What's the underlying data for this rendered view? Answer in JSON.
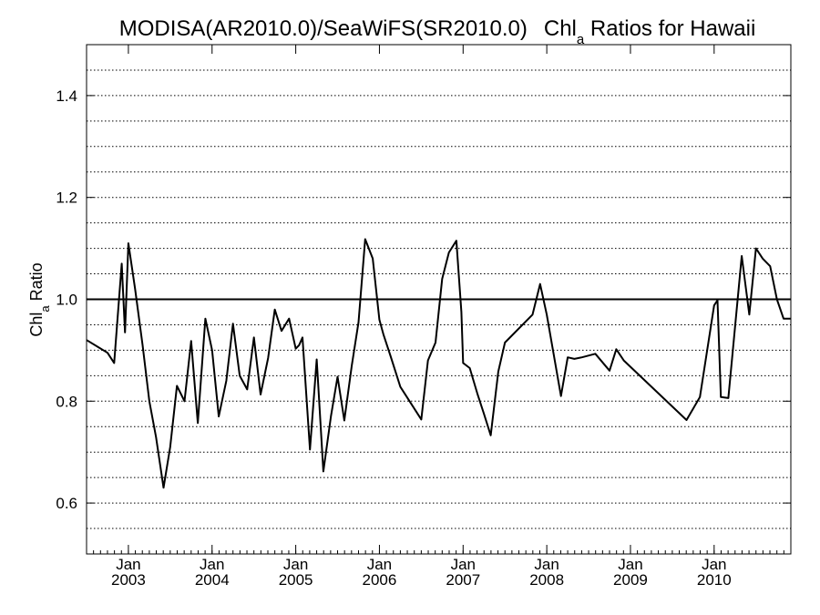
{
  "chart_data": {
    "type": "line",
    "title": "MODISA(AR2010.0)/SeaWiFS(SR2010.0)",
    "title_suffix_main": "Chl",
    "title_suffix_sub": "a",
    "title_suffix_rest": " Ratios for Hawaii",
    "ylabel_main": "Chl",
    "ylabel_sub": "a",
    "ylabel_rest": " Ratio",
    "ylim": [
      0.5,
      1.5
    ],
    "xlim": [
      2002.5,
      2010.9167
    ],
    "y_ticks": [
      {
        "value": 0.6,
        "label": "0.6"
      },
      {
        "value": 0.8,
        "label": "0.8"
      },
      {
        "value": 1.0,
        "label": "1.0"
      },
      {
        "value": 1.2,
        "label": "1.2"
      },
      {
        "value": 1.4,
        "label": "1.4"
      }
    ],
    "x_ticks": [
      {
        "value": 2003.0,
        "label_top": "Jan",
        "label_bottom": "2003"
      },
      {
        "value": 2004.0,
        "label_top": "Jan",
        "label_bottom": "2004"
      },
      {
        "value": 2005.0,
        "label_top": "Jan",
        "label_bottom": "2005"
      },
      {
        "value": 2006.0,
        "label_top": "Jan",
        "label_bottom": "2006"
      },
      {
        "value": 2007.0,
        "label_top": "Jan",
        "label_bottom": "2007"
      },
      {
        "value": 2008.0,
        "label_top": "Jan",
        "label_bottom": "2008"
      },
      {
        "value": 2009.0,
        "label_top": "Jan",
        "label_bottom": "2009"
      },
      {
        "value": 2010.0,
        "label_top": "Jan",
        "label_bottom": "2010"
      }
    ],
    "reference_line": 1.0,
    "grid": "dotted horizontal every 0.05",
    "line_color": "#000000",
    "series": [
      {
        "x": [
          2002.5,
          2002.75,
          2002.83,
          2002.92,
          2002.96,
          2003.0,
          2003.08,
          2003.17,
          2003.25,
          2003.33,
          2003.42,
          2003.5,
          2003.58,
          2003.67,
          2003.75,
          2003.83,
          2003.92,
          2004.0,
          2004.08,
          2004.17,
          2004.25,
          2004.33,
          2004.42,
          2004.5,
          2004.58,
          2004.67,
          2004.75,
          2004.83,
          2004.92,
          2005.0,
          2005.04,
          2005.08,
          2005.17,
          2005.25,
          2005.33,
          2005.42,
          2005.5,
          2005.58,
          2005.67,
          2005.75,
          2005.83,
          2005.92,
          2006.0,
          2006.05,
          2006.13,
          2006.25,
          2006.5,
          2006.58,
          2006.67,
          2006.75,
          2006.83,
          2006.92,
          2006.98,
          2007.0,
          2007.08,
          2007.17,
          2007.25,
          2007.33,
          2007.42,
          2007.5,
          2007.83,
          2007.92,
          2008.0,
          2008.17,
          2008.25,
          2008.33,
          2008.42,
          2008.58,
          2008.75,
          2008.83,
          2008.92,
          2009.67,
          2009.83,
          2010.0,
          2010.04,
          2010.08,
          2010.17,
          2010.33,
          2010.42,
          2010.5,
          2010.58,
          2010.67,
          2010.75,
          2010.83,
          2010.92
        ],
        "y": [
          0.92,
          0.895,
          0.875,
          1.07,
          0.935,
          1.11,
          1.02,
          0.91,
          0.8,
          0.73,
          0.63,
          0.71,
          0.83,
          0.8,
          0.918,
          0.757,
          0.962,
          0.9,
          0.77,
          0.84,
          0.952,
          0.85,
          0.823,
          0.925,
          0.813,
          0.885,
          0.98,
          0.938,
          0.962,
          0.903,
          0.91,
          0.925,
          0.705,
          0.882,
          0.662,
          0.77,
          0.848,
          0.762,
          0.87,
          0.955,
          1.118,
          1.08,
          0.96,
          0.93,
          0.89,
          0.828,
          0.764,
          0.88,
          0.915,
          1.04,
          1.092,
          1.115,
          0.975,
          0.875,
          0.865,
          0.815,
          0.775,
          0.733,
          0.858,
          0.915,
          0.97,
          1.03,
          0.97,
          0.81,
          0.886,
          0.883,
          0.886,
          0.893,
          0.86,
          0.902,
          0.88,
          0.763,
          0.808,
          0.988,
          0.998,
          0.808,
          0.806,
          1.085,
          0.97,
          1.1,
          1.08,
          1.065,
          1.0,
          0.962,
          0.962
        ]
      }
    ]
  }
}
